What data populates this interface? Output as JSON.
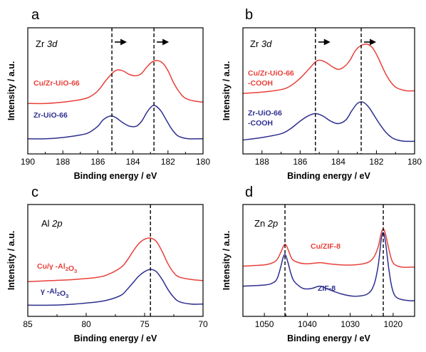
{
  "colors": {
    "red": "#e8403a",
    "blue": "#2e2f8f",
    "frame": "#000000"
  },
  "chart_data": [
    {
      "panel": "a",
      "type": "line",
      "element": "Zr",
      "orbital": "3d",
      "xlabel": "Binding energy / eV",
      "ylabel": "Intensity / a.u.",
      "xlim": [
        190,
        180
      ],
      "xticks": [
        190,
        188,
        186,
        184,
        182,
        180
      ],
      "ylim": [
        0,
        1
      ],
      "reference_lines": [
        185.2,
        182.8
      ],
      "arrows": true,
      "series": [
        {
          "name": "Cu/Zr-UiO-66",
          "color": "red",
          "x": [
            190,
            189,
            188,
            187,
            186.5,
            186,
            185.5,
            185,
            184.6,
            184.2,
            183.8,
            183.5,
            183.2,
            182.9,
            182.6,
            182.3,
            182,
            181.7,
            181.4,
            181.1,
            180.8,
            180.5,
            180
          ],
          "y": [
            0.4,
            0.4,
            0.41,
            0.43,
            0.45,
            0.5,
            0.59,
            0.66,
            0.66,
            0.63,
            0.62,
            0.64,
            0.69,
            0.73,
            0.74,
            0.72,
            0.66,
            0.57,
            0.5,
            0.45,
            0.43,
            0.42,
            0.41
          ]
        },
        {
          "name": "Zr-UiO-66",
          "color": "blue",
          "x": [
            190,
            189,
            188,
            187,
            186.5,
            186,
            185.7,
            185.3,
            185,
            184.6,
            184.2,
            183.8,
            183.5,
            183.2,
            182.9,
            182.7,
            182.4,
            182.1,
            181.8,
            181.5,
            181.2,
            180.8,
            180.4,
            180
          ],
          "y": [
            0.12,
            0.12,
            0.13,
            0.15,
            0.17,
            0.22,
            0.27,
            0.3,
            0.29,
            0.25,
            0.22,
            0.22,
            0.26,
            0.33,
            0.38,
            0.38,
            0.34,
            0.27,
            0.2,
            0.15,
            0.13,
            0.12,
            0.12,
            0.12
          ]
        }
      ]
    },
    {
      "panel": "b",
      "type": "line",
      "element": "Zr",
      "orbital": "3d",
      "xlabel": "Binding energy / eV",
      "ylabel": "Intensity / a.u.",
      "xlim": [
        189,
        180
      ],
      "xticks": [
        188,
        186,
        184,
        182,
        180
      ],
      "ylim": [
        0,
        1
      ],
      "reference_lines": [
        185.2,
        182.8
      ],
      "arrows": true,
      "series": [
        {
          "name_lines": [
            "Cu/Zr-UiO-66",
            "-COOH"
          ],
          "color": "red",
          "x": [
            189,
            188,
            187,
            186.5,
            186,
            185.5,
            185.1,
            184.7,
            184.3,
            184,
            183.7,
            183.4,
            183.1,
            182.8,
            182.5,
            182.2,
            181.9,
            181.6,
            181.3,
            181,
            180.7,
            180.4,
            180
          ],
          "y": [
            0.48,
            0.49,
            0.51,
            0.54,
            0.6,
            0.68,
            0.74,
            0.73,
            0.69,
            0.67,
            0.69,
            0.74,
            0.82,
            0.86,
            0.87,
            0.84,
            0.76,
            0.66,
            0.58,
            0.53,
            0.51,
            0.5,
            0.5
          ]
        },
        {
          "name_lines": [
            "Zr-UiO-66",
            "-COOH"
          ],
          "color": "blue",
          "x": [
            189,
            188,
            187,
            186.5,
            186,
            185.6,
            185.2,
            184.8,
            184.4,
            184,
            183.6,
            183.3,
            183,
            182.7,
            182.4,
            182.1,
            181.8,
            181.5,
            181.2,
            180.9,
            180.5,
            180
          ],
          "y": [
            0.11,
            0.13,
            0.16,
            0.2,
            0.26,
            0.3,
            0.32,
            0.3,
            0.26,
            0.24,
            0.27,
            0.34,
            0.4,
            0.41,
            0.37,
            0.3,
            0.23,
            0.17,
            0.13,
            0.11,
            0.1,
            0.1
          ]
        }
      ]
    },
    {
      "panel": "c",
      "type": "line",
      "element": "Al",
      "orbital": "2p",
      "xlabel": "Binding energy / eV",
      "ylabel": "Intensity / a.u.",
      "xlim": [
        85,
        70
      ],
      "xticks": [
        85,
        80,
        75,
        70
      ],
      "ylim": [
        0,
        1
      ],
      "reference_lines": [
        74.5
      ],
      "arrows": false,
      "series": [
        {
          "label_parts": [
            "Cu/",
            "γ",
            " -Al",
            "2",
            "O",
            "3"
          ],
          "color": "red",
          "x": [
            85,
            83,
            81,
            79,
            78,
            77,
            76.5,
            76,
            75.5,
            75,
            74.5,
            74,
            73.5,
            73,
            72.5,
            72,
            71,
            70
          ],
          "y": [
            0.31,
            0.32,
            0.33,
            0.35,
            0.38,
            0.44,
            0.5,
            0.58,
            0.65,
            0.69,
            0.7,
            0.67,
            0.58,
            0.47,
            0.39,
            0.35,
            0.33,
            0.32
          ]
        },
        {
          "label_parts": [
            "γ",
            " -Al",
            "2",
            "O",
            "3"
          ],
          "color": "blue",
          "x": [
            85,
            83,
            81,
            79,
            78,
            77,
            76.5,
            76,
            75.5,
            75,
            74.5,
            74,
            73.5,
            73,
            72.5,
            72,
            71,
            70
          ],
          "y": [
            0.1,
            0.1,
            0.11,
            0.13,
            0.15,
            0.19,
            0.24,
            0.3,
            0.36,
            0.4,
            0.42,
            0.4,
            0.33,
            0.24,
            0.17,
            0.13,
            0.11,
            0.11
          ]
        }
      ]
    },
    {
      "panel": "d",
      "type": "line",
      "element": "Zn",
      "orbital": "2p",
      "xlabel": "Binding energy / eV",
      "ylabel": "Intensity / a.u.",
      "xlim": [
        1055,
        1015
      ],
      "xticks": [
        1050,
        1040,
        1030,
        1020
      ],
      "ylim": [
        0,
        1
      ],
      "reference_lines": [
        1045.2,
        1022.3
      ],
      "arrows": false,
      "series": [
        {
          "name": "Cu/ZIF-8",
          "color": "red",
          "x": [
            1055,
            1050,
            1048,
            1047,
            1046.2,
            1045.5,
            1045,
            1044.3,
            1043.5,
            1042,
            1040,
            1037,
            1035,
            1032,
            1029,
            1026,
            1024.5,
            1023.5,
            1022.8,
            1022.3,
            1021.8,
            1021,
            1020.3,
            1019.5,
            1018,
            1016,
            1015
          ],
          "y": [
            0.45,
            0.46,
            0.48,
            0.51,
            0.57,
            0.63,
            0.64,
            0.58,
            0.51,
            0.48,
            0.47,
            0.48,
            0.47,
            0.46,
            0.46,
            0.48,
            0.53,
            0.62,
            0.74,
            0.78,
            0.74,
            0.6,
            0.5,
            0.46,
            0.44,
            0.44,
            0.44
          ]
        },
        {
          "name": "ZIF-8",
          "color": "blue",
          "x": [
            1055,
            1050,
            1048,
            1047,
            1046.2,
            1045.6,
            1045.1,
            1044.5,
            1043.8,
            1043,
            1041,
            1039,
            1037,
            1035,
            1032,
            1029,
            1026,
            1024.5,
            1023.5,
            1022.8,
            1022.3,
            1021.8,
            1021,
            1020.3,
            1019.5,
            1018,
            1016,
            1015
          ],
          "y": [
            0.27,
            0.28,
            0.3,
            0.34,
            0.44,
            0.53,
            0.55,
            0.48,
            0.38,
            0.31,
            0.25,
            0.25,
            0.27,
            0.24,
            0.2,
            0.18,
            0.2,
            0.28,
            0.45,
            0.68,
            0.75,
            0.67,
            0.42,
            0.26,
            0.18,
            0.15,
            0.14,
            0.14
          ]
        }
      ]
    }
  ]
}
